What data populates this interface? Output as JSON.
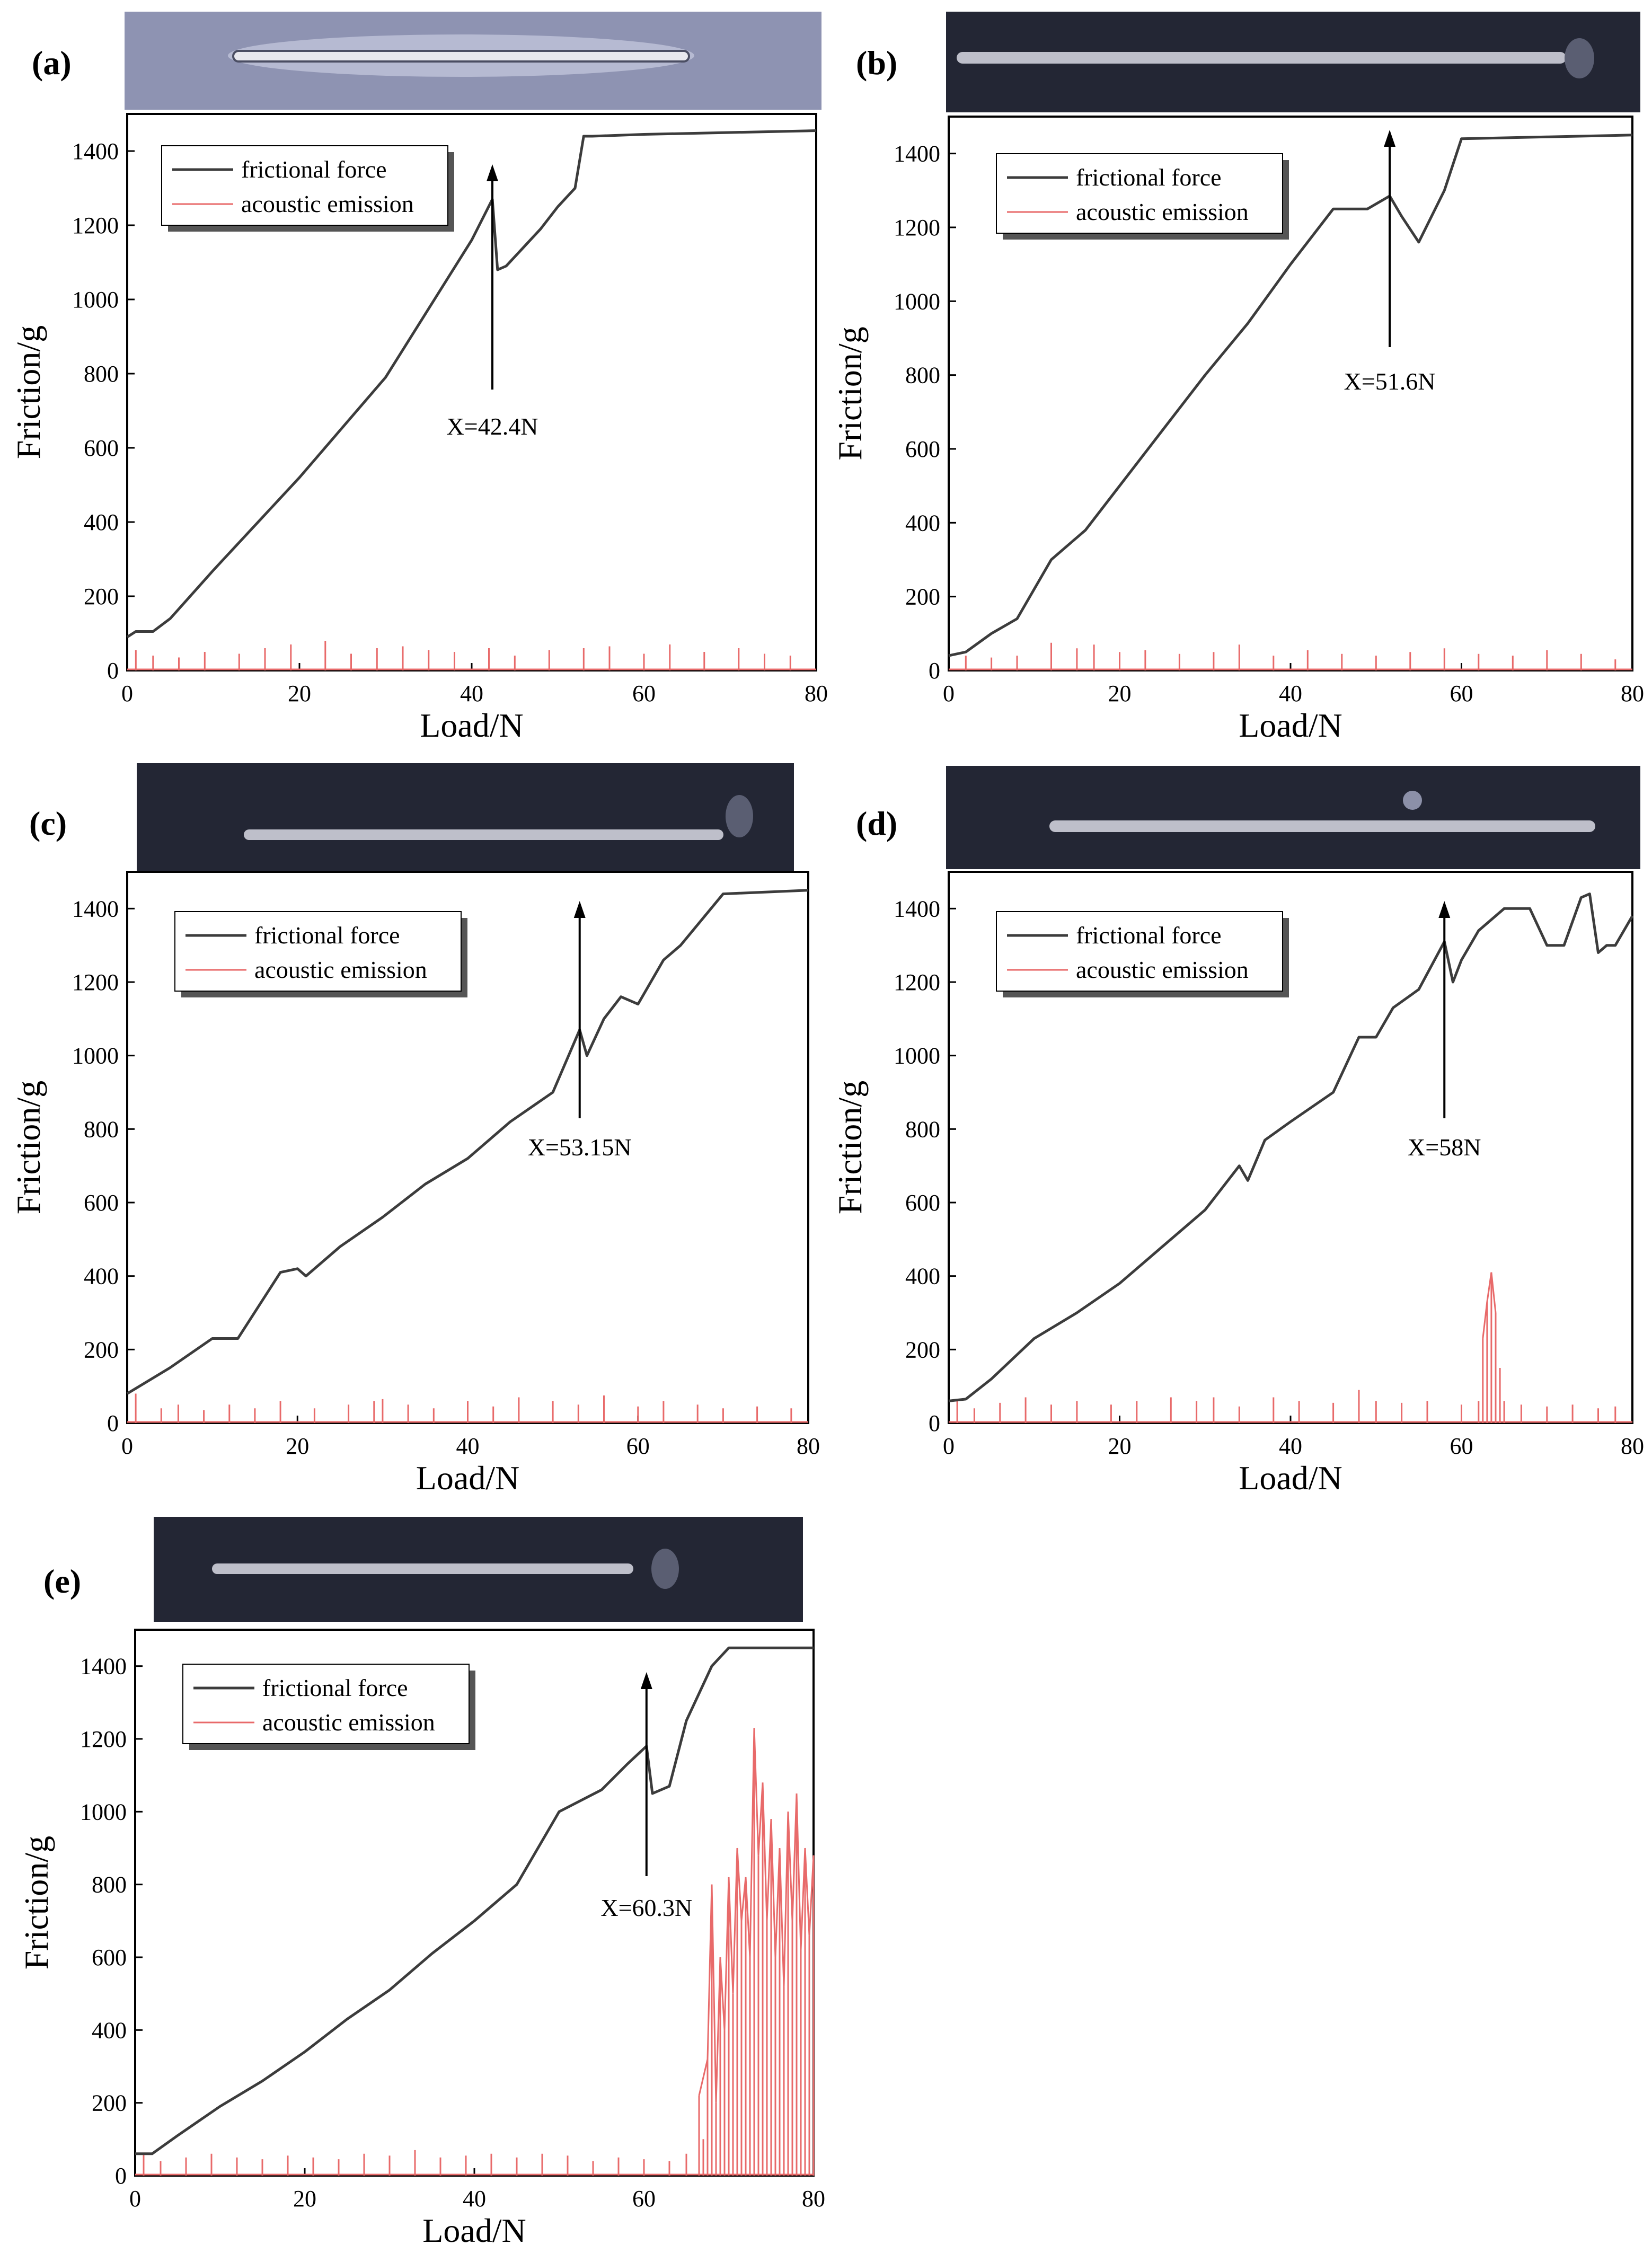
{
  "figure": {
    "description_panels": [
      "(a)",
      "(b)",
      "(c)",
      "(d)",
      "(e)"
    ],
    "colors": {
      "friction_line": "#3c3c3c",
      "acoustic_line": "#e86a6a",
      "axis": "#000000",
      "photo_a_bg": "#8e93b2",
      "photo_dark_bg": "#232634",
      "scratch": "#e8e8ee"
    }
  },
  "chart_data": [
    {
      "type": "line",
      "panel_label": "(a)",
      "xlabel": "Load/N",
      "ylabel": "Friction/g",
      "xlim": [
        0,
        80
      ],
      "ylim": [
        0,
        1500
      ],
      "xticks": [
        0,
        20,
        40,
        60,
        80
      ],
      "yticks": [
        0,
        200,
        400,
        600,
        800,
        1000,
        1200,
        1400
      ],
      "legend": [
        "frictional force",
        "acoustic emission"
      ],
      "annotation": {
        "text": "X=42.4N",
        "x": 42.4
      },
      "series": [
        {
          "name": "frictional force",
          "x": [
            0,
            1,
            3,
            5,
            10,
            20,
            30,
            40,
            42.4,
            43,
            44,
            46,
            48,
            50,
            52,
            53,
            54,
            60,
            70,
            80
          ],
          "y": [
            90,
            105,
            105,
            140,
            270,
            520,
            790,
            1160,
            1270,
            1080,
            1090,
            1140,
            1190,
            1250,
            1300,
            1440,
            1440,
            1445,
            1450,
            1455
          ]
        },
        {
          "name": "acoustic emission",
          "x": [
            1,
            3,
            6,
            9,
            13,
            16,
            19,
            23,
            26,
            29,
            32,
            35,
            38,
            42,
            45,
            49,
            53,
            56,
            60,
            63,
            67,
            71,
            74,
            77
          ],
          "y": [
            55,
            40,
            35,
            50,
            45,
            60,
            70,
            80,
            45,
            60,
            65,
            55,
            50,
            60,
            40,
            55,
            60,
            65,
            45,
            70,
            50,
            60,
            45,
            40
          ]
        }
      ]
    },
    {
      "type": "line",
      "panel_label": "(b)",
      "xlabel": "Load/N",
      "ylabel": "Friction/g",
      "xlim": [
        0,
        80
      ],
      "ylim": [
        0,
        1500
      ],
      "xticks": [
        0,
        20,
        40,
        60,
        80
      ],
      "yticks": [
        0,
        200,
        400,
        600,
        800,
        1000,
        1200,
        1400
      ],
      "legend": [
        "frictional force",
        "acoustic emission"
      ],
      "annotation": {
        "text": "X=51.6N",
        "x": 51.6
      },
      "series": [
        {
          "name": "frictional force",
          "x": [
            0,
            2,
            5,
            8,
            12,
            16,
            20,
            25,
            30,
            35,
            40,
            45,
            49,
            51.6,
            53,
            55,
            58,
            60,
            70,
            80
          ],
          "y": [
            40,
            50,
            100,
            140,
            300,
            380,
            500,
            650,
            800,
            940,
            1100,
            1250,
            1250,
            1285,
            1230,
            1160,
            1300,
            1440,
            1445,
            1450
          ]
        },
        {
          "name": "acoustic emission",
          "x": [
            2,
            5,
            8,
            12,
            15,
            17,
            20,
            23,
            27,
            31,
            34,
            38,
            42,
            46,
            50,
            54,
            58,
            62,
            66,
            70,
            74,
            78
          ],
          "y": [
            40,
            35,
            40,
            75,
            60,
            70,
            50,
            55,
            45,
            50,
            70,
            40,
            55,
            45,
            40,
            50,
            60,
            45,
            40,
            55,
            45,
            30
          ]
        }
      ]
    },
    {
      "type": "line",
      "panel_label": "(c)",
      "xlabel": "Load/N",
      "ylabel": "Friction/g",
      "xlim": [
        0,
        80
      ],
      "ylim": [
        0,
        1500
      ],
      "xticks": [
        0,
        20,
        40,
        60,
        80
      ],
      "yticks": [
        0,
        200,
        400,
        600,
        800,
        1000,
        1200,
        1400
      ],
      "legend": [
        "frictional force",
        "acoustic emission"
      ],
      "annotation": {
        "text": "X=53.15N",
        "x": 53.15
      },
      "series": [
        {
          "name": "frictional force",
          "x": [
            0,
            5,
            10,
            13,
            18,
            20,
            21,
            25,
            30,
            35,
            40,
            45,
            50,
            53.15,
            54,
            56,
            58,
            60,
            63,
            65,
            70,
            80
          ],
          "y": [
            80,
            150,
            230,
            230,
            410,
            420,
            400,
            480,
            560,
            650,
            720,
            820,
            900,
            1070,
            1000,
            1100,
            1160,
            1140,
            1260,
            1300,
            1440,
            1450
          ]
        },
        {
          "name": "acoustic emission",
          "x": [
            1,
            4,
            6,
            9,
            12,
            15,
            18,
            22,
            26,
            29,
            30,
            33,
            36,
            40,
            43,
            46,
            50,
            53,
            56,
            60,
            63,
            67,
            70,
            74,
            78
          ],
          "y": [
            80,
            40,
            50,
            35,
            50,
            40,
            60,
            40,
            50,
            60,
            65,
            50,
            40,
            60,
            45,
            70,
            60,
            50,
            75,
            45,
            60,
            50,
            40,
            45,
            40
          ]
        }
      ]
    },
    {
      "type": "line",
      "panel_label": "(d)",
      "xlabel": "Load/N",
      "ylabel": "Friction/g",
      "xlim": [
        0,
        80
      ],
      "ylim": [
        0,
        1500
      ],
      "xticks": [
        0,
        20,
        40,
        60,
        80
      ],
      "yticks": [
        0,
        200,
        400,
        600,
        800,
        1000,
        1200,
        1400
      ],
      "legend": [
        "frictional force",
        "acoustic emission"
      ],
      "annotation": {
        "text": "X=58N",
        "x": 58
      },
      "series": [
        {
          "name": "frictional force",
          "x": [
            0,
            2,
            5,
            10,
            15,
            20,
            25,
            30,
            34,
            35,
            37,
            40,
            45,
            48,
            50,
            52,
            55,
            58,
            59,
            60,
            62,
            65,
            68,
            70,
            72,
            74,
            75,
            76,
            77,
            78,
            80
          ],
          "y": [
            60,
            65,
            120,
            230,
            300,
            380,
            480,
            580,
            700,
            660,
            770,
            820,
            900,
            1050,
            1050,
            1130,
            1180,
            1310,
            1200,
            1260,
            1340,
            1400,
            1400,
            1300,
            1300,
            1430,
            1440,
            1280,
            1300,
            1300,
            1380
          ]
        },
        {
          "name": "acoustic emission",
          "x": [
            1,
            3,
            6,
            9,
            12,
            15,
            19,
            22,
            26,
            29,
            31,
            34,
            38,
            41,
            45,
            48,
            50,
            53,
            56,
            60,
            62,
            62.5,
            63,
            63.5,
            64,
            64.5,
            65,
            67,
            70,
            73,
            76,
            78
          ],
          "y": [
            60,
            40,
            55,
            70,
            50,
            60,
            50,
            60,
            70,
            60,
            70,
            45,
            70,
            60,
            55,
            90,
            60,
            55,
            60,
            50,
            60,
            230,
            330,
            410,
            300,
            150,
            60,
            50,
            45,
            50,
            40,
            45
          ]
        }
      ]
    },
    {
      "type": "line",
      "panel_label": "(e)",
      "xlabel": "Load/N",
      "ylabel": "Friction/g",
      "xlim": [
        0,
        80
      ],
      "ylim": [
        0,
        1500
      ],
      "xticks": [
        0,
        20,
        40,
        60,
        80
      ],
      "yticks": [
        0,
        200,
        400,
        600,
        800,
        1000,
        1200,
        1400
      ],
      "legend": [
        "frictional force",
        "acoustic emission"
      ],
      "annotation": {
        "text": "X=60.3N",
        "x": 60.3
      },
      "series": [
        {
          "name": "frictional force",
          "x": [
            0,
            2,
            5,
            10,
            15,
            20,
            25,
            30,
            35,
            40,
            45,
            50,
            55,
            58,
            60.3,
            61,
            63,
            65,
            68,
            70,
            80
          ],
          "y": [
            60,
            60,
            110,
            190,
            260,
            340,
            430,
            510,
            610,
            700,
            800,
            1000,
            1060,
            1130,
            1180,
            1050,
            1070,
            1250,
            1400,
            1450,
            1450
          ]
        },
        {
          "name": "acoustic emission",
          "x": [
            1,
            3,
            6,
            9,
            12,
            15,
            18,
            21,
            24,
            27,
            30,
            33,
            36,
            39,
            42,
            45,
            48,
            51,
            54,
            57,
            60,
            63,
            65,
            66.5,
            67,
            67.5,
            68,
            68.5,
            69,
            69.5,
            70,
            70.5,
            71,
            71.5,
            72,
            72.5,
            73,
            73.5,
            74,
            74.5,
            75,
            75.5,
            76,
            76.5,
            77,
            77.5,
            78,
            78.5,
            79,
            79.5,
            80
          ],
          "y": [
            60,
            40,
            50,
            60,
            50,
            45,
            55,
            50,
            45,
            60,
            55,
            70,
            50,
            55,
            60,
            50,
            60,
            55,
            40,
            50,
            45,
            40,
            60,
            220,
            100,
            320,
            800,
            200,
            600,
            400,
            820,
            500,
            900,
            700,
            820,
            600,
            1230,
            880,
            1080,
            700,
            980,
            600,
            900,
            520,
            1000,
            700,
            1050,
            620,
            900,
            660,
            880
          ]
        }
      ]
    }
  ]
}
